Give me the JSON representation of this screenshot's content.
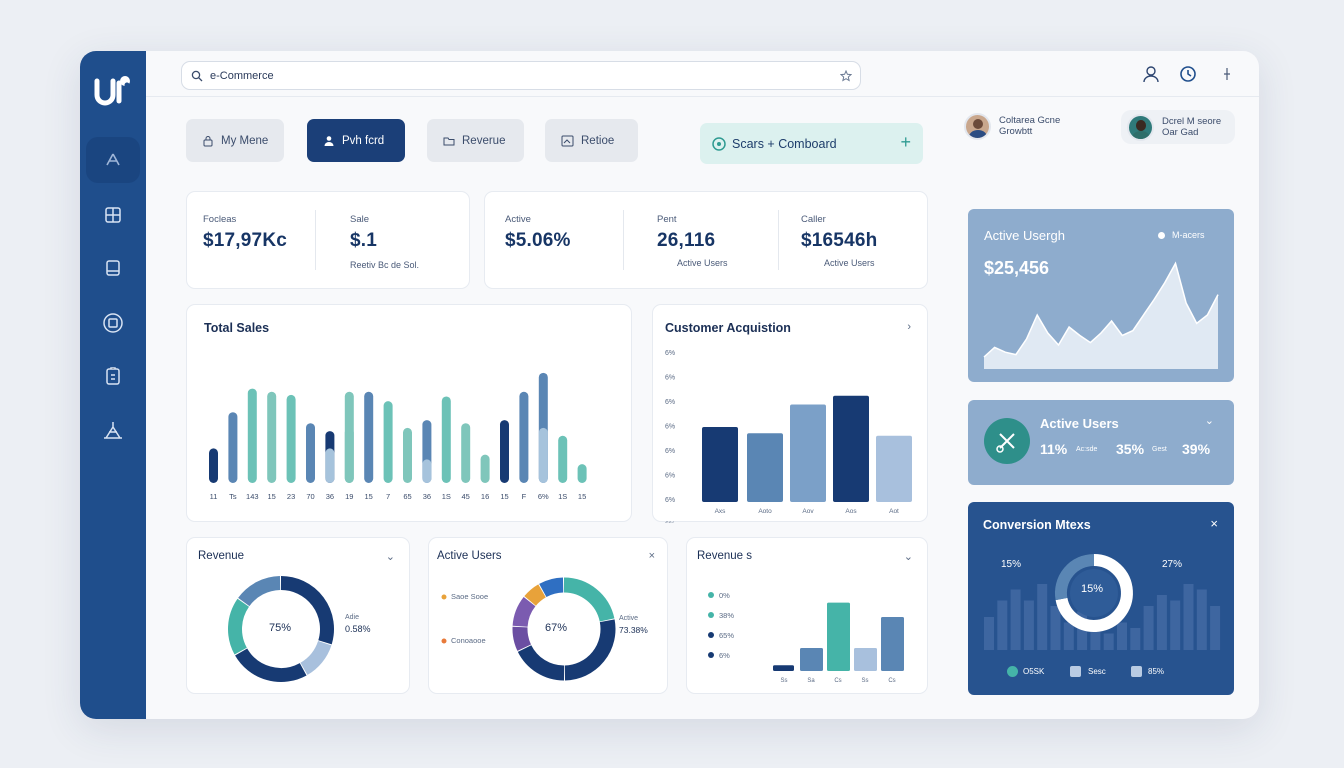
{
  "search": {
    "value": "e-Commerce"
  },
  "nav": [
    {
      "label": "My Mene",
      "icon": "lock-icon"
    },
    {
      "label": "Pvh fcrd",
      "icon": "user-icon"
    },
    {
      "label": "Reverue",
      "icon": "folder-icon"
    },
    {
      "label": "Retioe",
      "icon": "image-icon"
    }
  ],
  "cta": {
    "label": "Scars + Comboard"
  },
  "users": [
    {
      "name": "Coltarea Gcne",
      "role": "Growbtt"
    },
    {
      "name": "Dcrel M seore",
      "role": "Oar Gad"
    }
  ],
  "kpi1": {
    "a_label": "Focleas",
    "a_value": "$17,97Kc",
    "b_label": "Sale",
    "b_value": "$.1",
    "b_sub": "Reetiv  Bc de Sol."
  },
  "kpi2": {
    "a_label": "Active",
    "a_value": "$5.06%",
    "b_label": "Pent",
    "b_value": "26,116",
    "b_sub": "Active Users",
    "c_label": "Caller",
    "c_value": "$16546h",
    "c_sub": "Active Users"
  },
  "total_sales": {
    "title": "Total Sales"
  },
  "customer_acq": {
    "title": "Customer Acquistion"
  },
  "revenue_donut": {
    "title": "Revenue",
    "center": "75%",
    "side_top": "Adie",
    "side_val": "0.58%"
  },
  "users_donut": {
    "title": "Active Users",
    "center": "67%",
    "legend_a": "Saoe Sooe",
    "legend_b": "Conoaooe",
    "side_top": "Active",
    "side_val": "73.38%"
  },
  "revenue_s": {
    "title": "Revenue s",
    "legend": [
      "0%",
      "38%",
      "65%",
      "6%"
    ]
  },
  "active_usergh": {
    "title": "Active Usergh",
    "value": "$25,456",
    "legend": "M-acers"
  },
  "active_users_panel": {
    "title": "Active Users",
    "v1": "11%",
    "s1": "Ac:sde",
    "v2": "35%",
    "s2": "Gest",
    "v3": "39%"
  },
  "conversion": {
    "title": "Conversion Mtexs",
    "left": "15%",
    "right": "27%",
    "center": "15%",
    "leg1": "O5SK",
    "leg2": "Sesc",
    "leg3": "85%"
  },
  "colors": {
    "sidebar": "#1f4e8c",
    "navy": "#123a78",
    "steel": "#5a86b4",
    "teal": "#6cc2b7",
    "pale": "#a8c0dd",
    "panel": "#8eaccd",
    "dark_panel": "#27538f"
  },
  "chart_data": [
    {
      "type": "bar",
      "title": "Total Sales",
      "categories": [
        "11",
        "Ts",
        "143",
        "15",
        "23",
        "70",
        "36",
        "19",
        "15",
        "7",
        "65",
        "36",
        "1S",
        "45",
        "16",
        "15",
        "F",
        "6%",
        "1S",
        "15"
      ],
      "series": [
        {
          "values": [
            22,
            45,
            60,
            58,
            56,
            38,
            33,
            58,
            58,
            52,
            35,
            40,
            55,
            38,
            18,
            40,
            58,
            70,
            30,
            12
          ]
        },
        {
          "values": [
            0,
            0,
            0,
            0,
            0,
            0,
            22,
            35,
            0,
            0,
            0,
            15,
            0,
            0,
            0,
            0,
            0,
            35,
            0,
            0
          ]
        }
      ],
      "ylim": [
        0,
        75
      ]
    },
    {
      "type": "bar",
      "title": "Customer Acquistion",
      "categories": [
        "Axs",
        "Aoto",
        "Aov",
        "Aos",
        "Aot"
      ],
      "values": [
        60,
        55,
        78,
        85,
        53
      ],
      "yticks": [
        "6%",
        "6%",
        "6%",
        "6%",
        "6%",
        "6%",
        "6%",
        "6%"
      ],
      "ylim": [
        0,
        120
      ]
    },
    {
      "type": "pie",
      "title": "Revenue",
      "values": [
        30,
        12,
        25,
        18,
        15
      ]
    },
    {
      "type": "pie",
      "title": "Active Users",
      "values": [
        22,
        28,
        18,
        8,
        10,
        6,
        8
      ]
    },
    {
      "type": "bar",
      "title": "Revenue s",
      "categories": [
        "Ss",
        "Sa",
        "Cs",
        "Ss",
        "Cs"
      ],
      "values": [
        8,
        32,
        95,
        32,
        75
      ],
      "ylim": [
        0,
        100
      ]
    },
    {
      "type": "area",
      "title": "Active Usergh",
      "values": [
        10,
        18,
        14,
        12,
        25,
        45,
        30,
        20,
        35,
        28,
        22,
        30,
        40,
        28,
        32,
        45,
        58,
        72,
        88,
        55,
        38,
        45,
        62
      ]
    },
    {
      "type": "bar",
      "title": "Conversion Mtexs",
      "values": [
        30,
        45,
        55,
        45,
        60,
        40,
        25,
        35,
        20,
        15,
        25,
        20,
        40,
        50,
        45,
        60,
        55,
        40
      ]
    }
  ]
}
